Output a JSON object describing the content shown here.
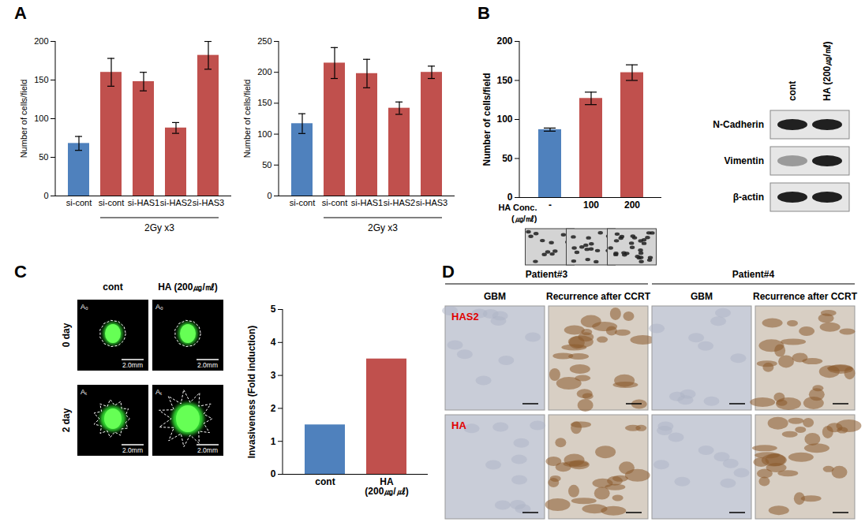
{
  "chart_data": [
    {
      "type": "bar",
      "ylabel": "Number of cells/field",
      "categories": [
        "si-cont",
        "si-cont",
        "si-HAS1",
        "si-HAS2",
        "si-HAS3"
      ],
      "values": [
        68,
        160,
        148,
        88,
        182
      ],
      "errors": [
        9,
        18,
        12,
        7,
        18
      ],
      "colors": [
        "#4f81bd",
        "#c0504d",
        "#c0504d",
        "#c0504d",
        "#c0504d"
      ],
      "group_label": "2Gy x3",
      "ylim": [
        0,
        200
      ],
      "yticks": [
        0,
        50,
        100,
        150,
        200
      ]
    },
    {
      "type": "bar",
      "ylabel": "Number of cells/field",
      "categories": [
        "si-cont",
        "si-cont",
        "si-HAS1",
        "si-HAS2",
        "si-HAS3"
      ],
      "values": [
        117,
        215,
        198,
        142,
        200
      ],
      "errors": [
        16,
        25,
        23,
        10,
        10
      ],
      "colors": [
        "#4f81bd",
        "#c0504d",
        "#c0504d",
        "#c0504d",
        "#c0504d"
      ],
      "group_label": "2Gy x3",
      "ylim": [
        0,
        250
      ],
      "yticks": [
        0,
        50,
        100,
        150,
        200,
        250
      ]
    },
    {
      "type": "bar",
      "ylabel": "Number of cells/field",
      "xlabel": "HA Conc. (㎍/㎖)",
      "categories": [
        "-",
        "100",
        "200"
      ],
      "values": [
        87,
        127,
        160
      ],
      "errors": [
        2,
        8,
        10
      ],
      "colors": [
        "#4f81bd",
        "#c0504d",
        "#c0504d"
      ],
      "ylim": [
        0,
        200
      ],
      "yticks": [
        0,
        50,
        100,
        150,
        200
      ]
    },
    {
      "type": "bar",
      "ylabel": "Invasiveness (Fold induction)",
      "categories": [
        "cont",
        "HA (200㎍/㎕)"
      ],
      "values": [
        1.5,
        3.5
      ],
      "colors": [
        "#4f81bd",
        "#c0504d"
      ],
      "ylim": [
        0,
        5
      ],
      "yticks": [
        0,
        1,
        2,
        3,
        4,
        5
      ]
    }
  ],
  "figure": {
    "panel_labels": [
      "A",
      "B",
      "C",
      "D"
    ],
    "B": {
      "blot": {
        "columns": [
          "cont",
          "HA (200㎍/㎖)"
        ],
        "rows": [
          "N-Cadherin",
          "Vimentin",
          "β-actin"
        ]
      }
    },
    "C": {
      "columns": [
        "cont",
        "HA (200㎍/㎖)"
      ],
      "rows": [
        "0 day",
        "2 day"
      ],
      "area_labels": [
        "A₀",
        "Aₜ"
      ],
      "scale_bar": "2.0mm"
    },
    "D": {
      "patients": [
        "Patient#3",
        "Patient#4"
      ],
      "columns": [
        "GBM",
        "Recurrence  after CCRT"
      ],
      "rows": [
        "HAS2",
        "HA"
      ]
    }
  }
}
